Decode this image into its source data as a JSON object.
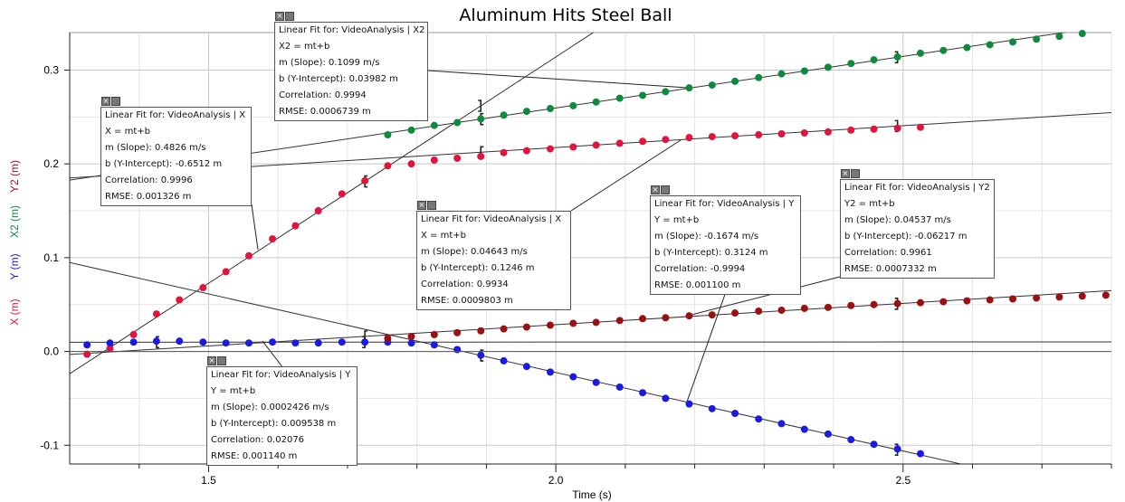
{
  "chart_data": {
    "type": "scatter",
    "title": "Aluminum Hits Steel Ball",
    "xlabel": "Time (s)",
    "ylabels": [
      {
        "text": "X (m)",
        "color": "#e0143c"
      },
      {
        "text": "Y (m)",
        "color": "#1a1ae0"
      },
      {
        "text": "X2 (m)",
        "color": "#0e8a3e"
      },
      {
        "text": "Y2 (m)",
        "color": "#9b1010"
      }
    ],
    "xlim": [
      1.3,
      2.8
    ],
    "ylim": [
      -0.12,
      0.34
    ],
    "xticks": [
      1.5,
      2.0,
      2.5
    ],
    "xtick_labels": [
      "1.5",
      "2.0",
      "2.5"
    ],
    "yticks": [
      -0.1,
      0.0,
      0.1,
      0.2,
      0.3
    ],
    "ytick_labels": [
      "-0.1",
      "0.0",
      "0.1",
      "0.2",
      "0.3"
    ],
    "grid": true,
    "colors": {
      "X": "#e0143c",
      "Y": "#1a1ae0",
      "X2": "#0e8a3e",
      "Y2": "#9b1010"
    },
    "series": [
      {
        "name": "X",
        "x": [
          1.325,
          1.358,
          1.392,
          1.425,
          1.458,
          1.492,
          1.525,
          1.558,
          1.592,
          1.625,
          1.658,
          1.692,
          1.725,
          1.758,
          1.792,
          1.825,
          1.858,
          1.892,
          1.925,
          1.958,
          1.992,
          2.025,
          2.058,
          2.092,
          2.125,
          2.158,
          2.192,
          2.225,
          2.258,
          2.292,
          2.325,
          2.358,
          2.392,
          2.425,
          2.458,
          2.492,
          2.525
        ],
        "y": [
          -0.003,
          0.003,
          0.018,
          0.04,
          0.055,
          0.068,
          0.085,
          0.102,
          0.12,
          0.134,
          0.15,
          0.168,
          0.182,
          0.198,
          0.2,
          0.204,
          0.206,
          0.208,
          0.212,
          0.214,
          0.216,
          0.218,
          0.22,
          0.222,
          0.224,
          0.226,
          0.228,
          0.229,
          0.23,
          0.231,
          0.232,
          0.233,
          0.234,
          0.236,
          0.237,
          0.238,
          0.239
        ]
      },
      {
        "name": "Y",
        "x": [
          1.325,
          1.358,
          1.392,
          1.425,
          1.458,
          1.492,
          1.525,
          1.558,
          1.592,
          1.625,
          1.658,
          1.692,
          1.725,
          1.758,
          1.792,
          1.825,
          1.858,
          1.892,
          1.925,
          1.958,
          1.992,
          2.025,
          2.058,
          2.092,
          2.125,
          2.158,
          2.192,
          2.225,
          2.258,
          2.292,
          2.325,
          2.358,
          2.392,
          2.425,
          2.458,
          2.492,
          2.525
        ],
        "y": [
          0.007,
          0.009,
          0.01,
          0.011,
          0.011,
          0.01,
          0.009,
          0.009,
          0.01,
          0.009,
          0.009,
          0.01,
          0.01,
          0.01,
          0.009,
          0.007,
          0.002,
          -0.004,
          -0.01,
          -0.016,
          -0.022,
          -0.027,
          -0.033,
          -0.038,
          -0.044,
          -0.05,
          -0.056,
          -0.061,
          -0.066,
          -0.072,
          -0.077,
          -0.083,
          -0.088,
          -0.094,
          -0.099,
          -0.104,
          -0.109
        ]
      },
      {
        "name": "X2",
        "x": [
          1.758,
          1.792,
          1.825,
          1.858,
          1.892,
          1.925,
          1.958,
          1.992,
          2.025,
          2.058,
          2.092,
          2.125,
          2.158,
          2.192,
          2.225,
          2.258,
          2.292,
          2.325,
          2.358,
          2.392,
          2.425,
          2.458,
          2.492,
          2.525,
          2.558,
          2.592,
          2.625,
          2.658,
          2.692,
          2.725,
          2.758,
          2.792
        ],
        "y": [
          0.231,
          0.236,
          0.241,
          0.244,
          0.248,
          0.252,
          0.256,
          0.259,
          0.262,
          0.266,
          0.27,
          0.273,
          0.277,
          0.281,
          0.284,
          0.288,
          0.292,
          0.296,
          0.299,
          0.303,
          0.307,
          0.311,
          0.314,
          0.318,
          0.321,
          0.324,
          0.327,
          0.33,
          0.333,
          0.336,
          0.339,
          0.342
        ]
      },
      {
        "name": "Y2",
        "x": [
          1.758,
          1.792,
          1.825,
          1.858,
          1.892,
          1.925,
          1.958,
          1.992,
          2.025,
          2.058,
          2.092,
          2.125,
          2.158,
          2.192,
          2.225,
          2.258,
          2.292,
          2.325,
          2.358,
          2.392,
          2.425,
          2.458,
          2.492,
          2.525,
          2.558,
          2.592,
          2.625,
          2.658,
          2.692,
          2.725,
          2.758,
          2.792
        ],
        "y": [
          0.014,
          0.016,
          0.018,
          0.02,
          0.022,
          0.024,
          0.026,
          0.028,
          0.03,
          0.031,
          0.033,
          0.035,
          0.036,
          0.038,
          0.039,
          0.041,
          0.043,
          0.044,
          0.046,
          0.047,
          0.049,
          0.05,
          0.051,
          0.052,
          0.053,
          0.054,
          0.055,
          0.056,
          0.057,
          0.058,
          0.059,
          0.06
        ]
      }
    ],
    "fit_lines": [
      {
        "series": "X",
        "m": 0.4826,
        "b": -0.6512
      },
      {
        "series": "X",
        "m": 0.04643,
        "b": 0.1246
      },
      {
        "series": "Y",
        "m": 0.0002426,
        "b": 0.009538
      },
      {
        "series": "Y",
        "m": -0.1674,
        "b": 0.3124
      },
      {
        "series": "X2",
        "m": 0.1099,
        "b": 0.03982
      },
      {
        "series": "Y2",
        "m": 0.04537,
        "b": -0.06217
      }
    ],
    "fit_boxes": [
      {
        "title": "Linear Fit for: VideoAnalysis | X2",
        "equation": "X2 = mt+b",
        "slope": "m (Slope): 0.1099 m/s",
        "intercept": "b (Y-Intercept): 0.03982 m",
        "correlation": "Correlation: 0.9994",
        "rmse": "RMSE: 0.0006739 m"
      },
      {
        "title": "Linear Fit for: VideoAnalysis | X",
        "equation": "X = mt+b",
        "slope": "m (Slope): 0.4826 m/s",
        "intercept": "b (Y-Intercept): -0.6512 m",
        "correlation": "Correlation: 0.9996",
        "rmse": "RMSE: 0.001326 m"
      },
      {
        "title": "Linear Fit for: VideoAnalysis | X",
        "equation": "X = mt+b",
        "slope": "m (Slope): 0.04643 m/s",
        "intercept": "b (Y-Intercept): 0.1246 m",
        "correlation": "Correlation: 0.9934",
        "rmse": "RMSE: 0.0009803 m"
      },
      {
        "title": "Linear Fit for: VideoAnalysis | Y",
        "equation": "Y = mt+b",
        "slope": "m (Slope): -0.1674 m/s",
        "intercept": "b (Y-Intercept): 0.3124 m",
        "correlation": "Correlation: -0.9994",
        "rmse": "RMSE: 0.001100 m"
      },
      {
        "title": "Linear Fit for: VideoAnalysis | Y2",
        "equation": "Y2 = mt+b",
        "slope": "m (Slope): 0.04537 m/s",
        "intercept": "b (Y-Intercept): -0.06217 m",
        "correlation": "Correlation: 0.9961",
        "rmse": "RMSE: 0.0007332 m"
      },
      {
        "title": "Linear Fit for: VideoAnalysis | Y",
        "equation": "Y = mt+b",
        "slope": "m (Slope): 0.0002426 m/s",
        "intercept": "b (Y-Intercept): 0.009538 m",
        "correlation": "Correlation: 0.02076",
        "rmse": "RMSE: 0.001140 m"
      }
    ],
    "fit_ranges": [
      {
        "x0": 1.725,
        "x1": 1.892
      },
      {
        "x0": 1.892,
        "x1": 2.492
      },
      {
        "x0": 1.425,
        "x1": 1.725
      },
      {
        "x0": 1.892,
        "x1": 2.492
      },
      {
        "x0": 1.892,
        "x1": 2.492
      },
      {
        "x0": 1.725,
        "x1": 2.492
      }
    ]
  }
}
